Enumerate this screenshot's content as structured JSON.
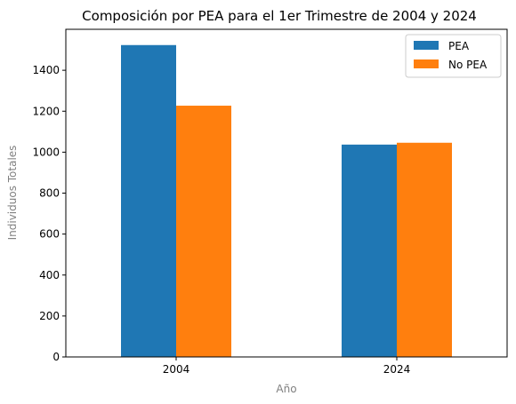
{
  "chart_data": {
    "type": "bar",
    "title": "Composición por PEA para el 1er Trimestre de 2004 y 2024",
    "xlabel": "Año",
    "ylabel": "Individuos Totales",
    "categories": [
      "2004",
      "2024"
    ],
    "series": [
      {
        "name": "PEA",
        "color": "#1f77b4",
        "values": [
          1523,
          1037
        ]
      },
      {
        "name": "No PEA",
        "color": "#ff7f0e",
        "values": [
          1227,
          1046
        ]
      }
    ],
    "ylim": [
      0,
      1600
    ],
    "yticks": [
      "0",
      "200",
      "400",
      "600",
      "800",
      "1000",
      "1200",
      "1400"
    ],
    "grid": false,
    "legend_position": "top-right"
  }
}
